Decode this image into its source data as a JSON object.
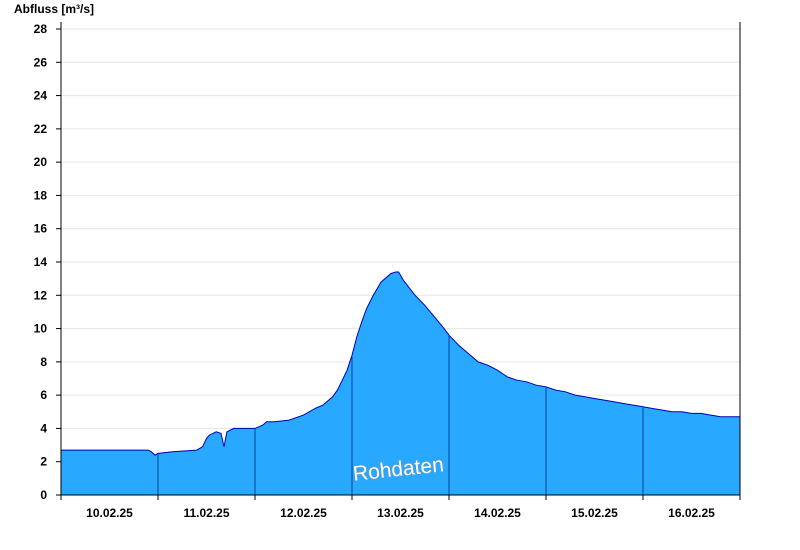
{
  "chart_data": {
    "type": "area",
    "title": "",
    "ylabel": "Abfluss [m³/s]",
    "xlabel": "",
    "ylim": [
      0,
      28
    ],
    "yticks": [
      0,
      2,
      4,
      6,
      8,
      10,
      12,
      14,
      16,
      18,
      20,
      22,
      24,
      26,
      28
    ],
    "grid": true,
    "xlim": [
      0,
      7
    ],
    "x_unit": "days (start 10.02.25 00:00)",
    "day_labels": [
      "10.02.25",
      "11.02.25",
      "12.02.25",
      "13.02.25",
      "14.02.25",
      "15.02.25",
      "16.02.25"
    ],
    "series": [
      {
        "name": "",
        "color": "#29a8ff",
        "line_color": "#0000b0",
        "x": [
          0.0,
          0.9,
          0.93,
          0.97,
          1.0,
          1.15,
          1.4,
          1.46,
          1.5,
          1.53,
          1.6,
          1.65,
          1.68,
          1.71,
          1.78,
          2.0,
          2.08,
          2.12,
          2.2,
          2.35,
          2.5,
          2.62,
          2.7,
          2.8,
          2.85,
          2.9,
          2.95,
          3.0,
          3.05,
          3.1,
          3.15,
          3.22,
          3.3,
          3.4,
          3.45,
          3.48,
          3.5,
          3.53,
          3.57,
          3.65,
          3.75,
          3.85,
          3.95,
          4.0,
          4.1,
          4.2,
          4.3,
          4.4,
          4.5,
          4.55,
          4.6,
          4.7,
          4.8,
          4.9,
          5.0,
          5.1,
          5.2,
          5.3,
          5.4,
          5.5,
          5.6,
          5.7,
          5.8,
          5.9,
          6.0,
          6.1,
          6.2,
          6.3,
          6.4,
          6.5,
          6.6,
          6.7,
          6.8,
          6.9,
          7.0
        ],
        "values": [
          2.7,
          2.7,
          2.6,
          2.4,
          2.5,
          2.6,
          2.7,
          2.9,
          3.4,
          3.6,
          3.8,
          3.7,
          2.9,
          3.8,
          4.0,
          4.0,
          4.2,
          4.4,
          4.4,
          4.5,
          4.8,
          5.2,
          5.4,
          5.9,
          6.3,
          6.9,
          7.5,
          8.4,
          9.5,
          10.4,
          11.2,
          12.0,
          12.8,
          13.3,
          13.4,
          13.4,
          13.2,
          12.9,
          12.6,
          12.0,
          11.4,
          10.7,
          10.0,
          9.6,
          9.0,
          8.5,
          8.0,
          7.8,
          7.5,
          7.3,
          7.1,
          6.9,
          6.8,
          6.6,
          6.5,
          6.3,
          6.2,
          6.0,
          5.9,
          5.8,
          5.7,
          5.6,
          5.5,
          5.4,
          5.3,
          5.2,
          5.1,
          5.0,
          5.0,
          4.9,
          4.9,
          4.8,
          4.7,
          4.7,
          4.7
        ]
      }
    ],
    "annotation": "Rohdaten"
  }
}
